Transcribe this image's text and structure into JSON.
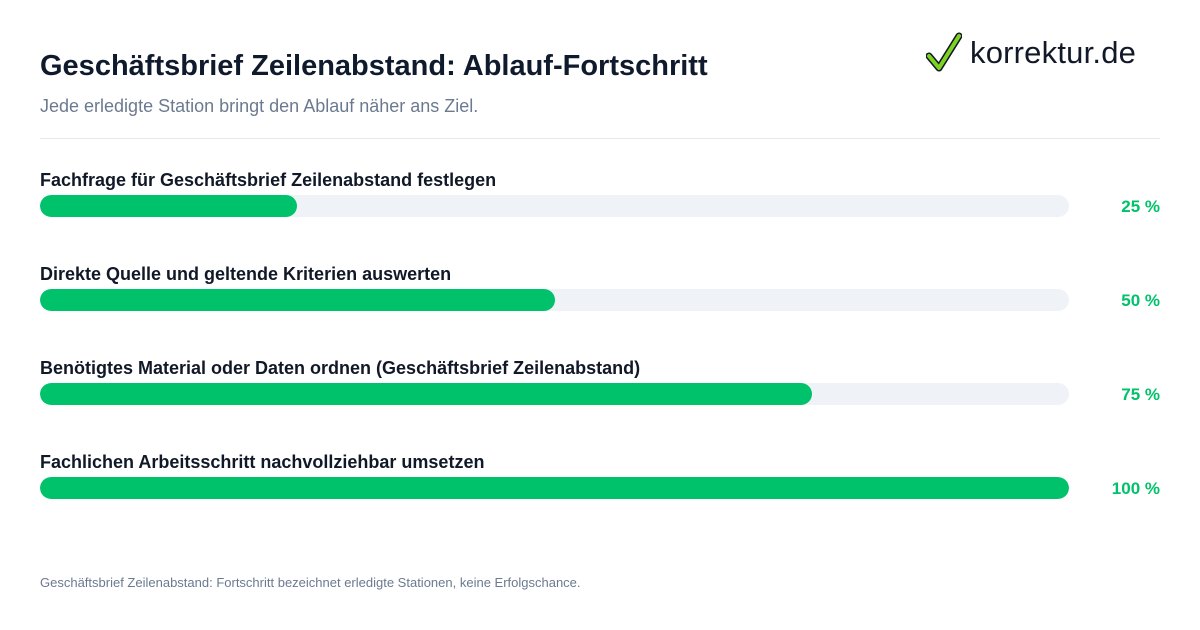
{
  "header": {
    "title": "Geschäftsbrief Zeilenabstand: Ablauf-Fortschritt",
    "subtitle": "Jede erledigte Station bringt den Ablauf näher ans Ziel."
  },
  "logo": {
    "text": "korrektur.de",
    "icon": "checkmark-icon",
    "check_color": "#7ed321"
  },
  "colors": {
    "fill": "#00c26a",
    "track": "#eff3f8",
    "title": "#0f1b2d",
    "muted": "#6b7a90"
  },
  "chart_data": {
    "type": "bar",
    "orientation": "horizontal",
    "title": "Geschäftsbrief Zeilenabstand: Ablauf-Fortschritt",
    "subtitle": "Jede erledigte Station bringt den Ablauf näher ans Ziel.",
    "xlim": [
      0,
      100
    ],
    "unit": "%",
    "categories": [
      "Fachfrage für Geschäftsbrief Zeilenabstand festlegen",
      "Direkte Quelle und geltende Kriterien auswerten",
      "Benötigtes Material oder Daten ordnen (Geschäftsbrief Zeilenabstand)",
      "Fachlichen Arbeitsschritt nachvollziehbar umsetzen"
    ],
    "values": [
      25,
      50,
      75,
      100
    ],
    "value_labels": [
      "25 %",
      "50 %",
      "75 %",
      "100 %"
    ],
    "grid": false,
    "legend": "none"
  },
  "footer": {
    "note": "Geschäftsbrief Zeilenabstand: Fortschritt bezeichnet erledigte Stationen, keine Erfolgschance."
  }
}
